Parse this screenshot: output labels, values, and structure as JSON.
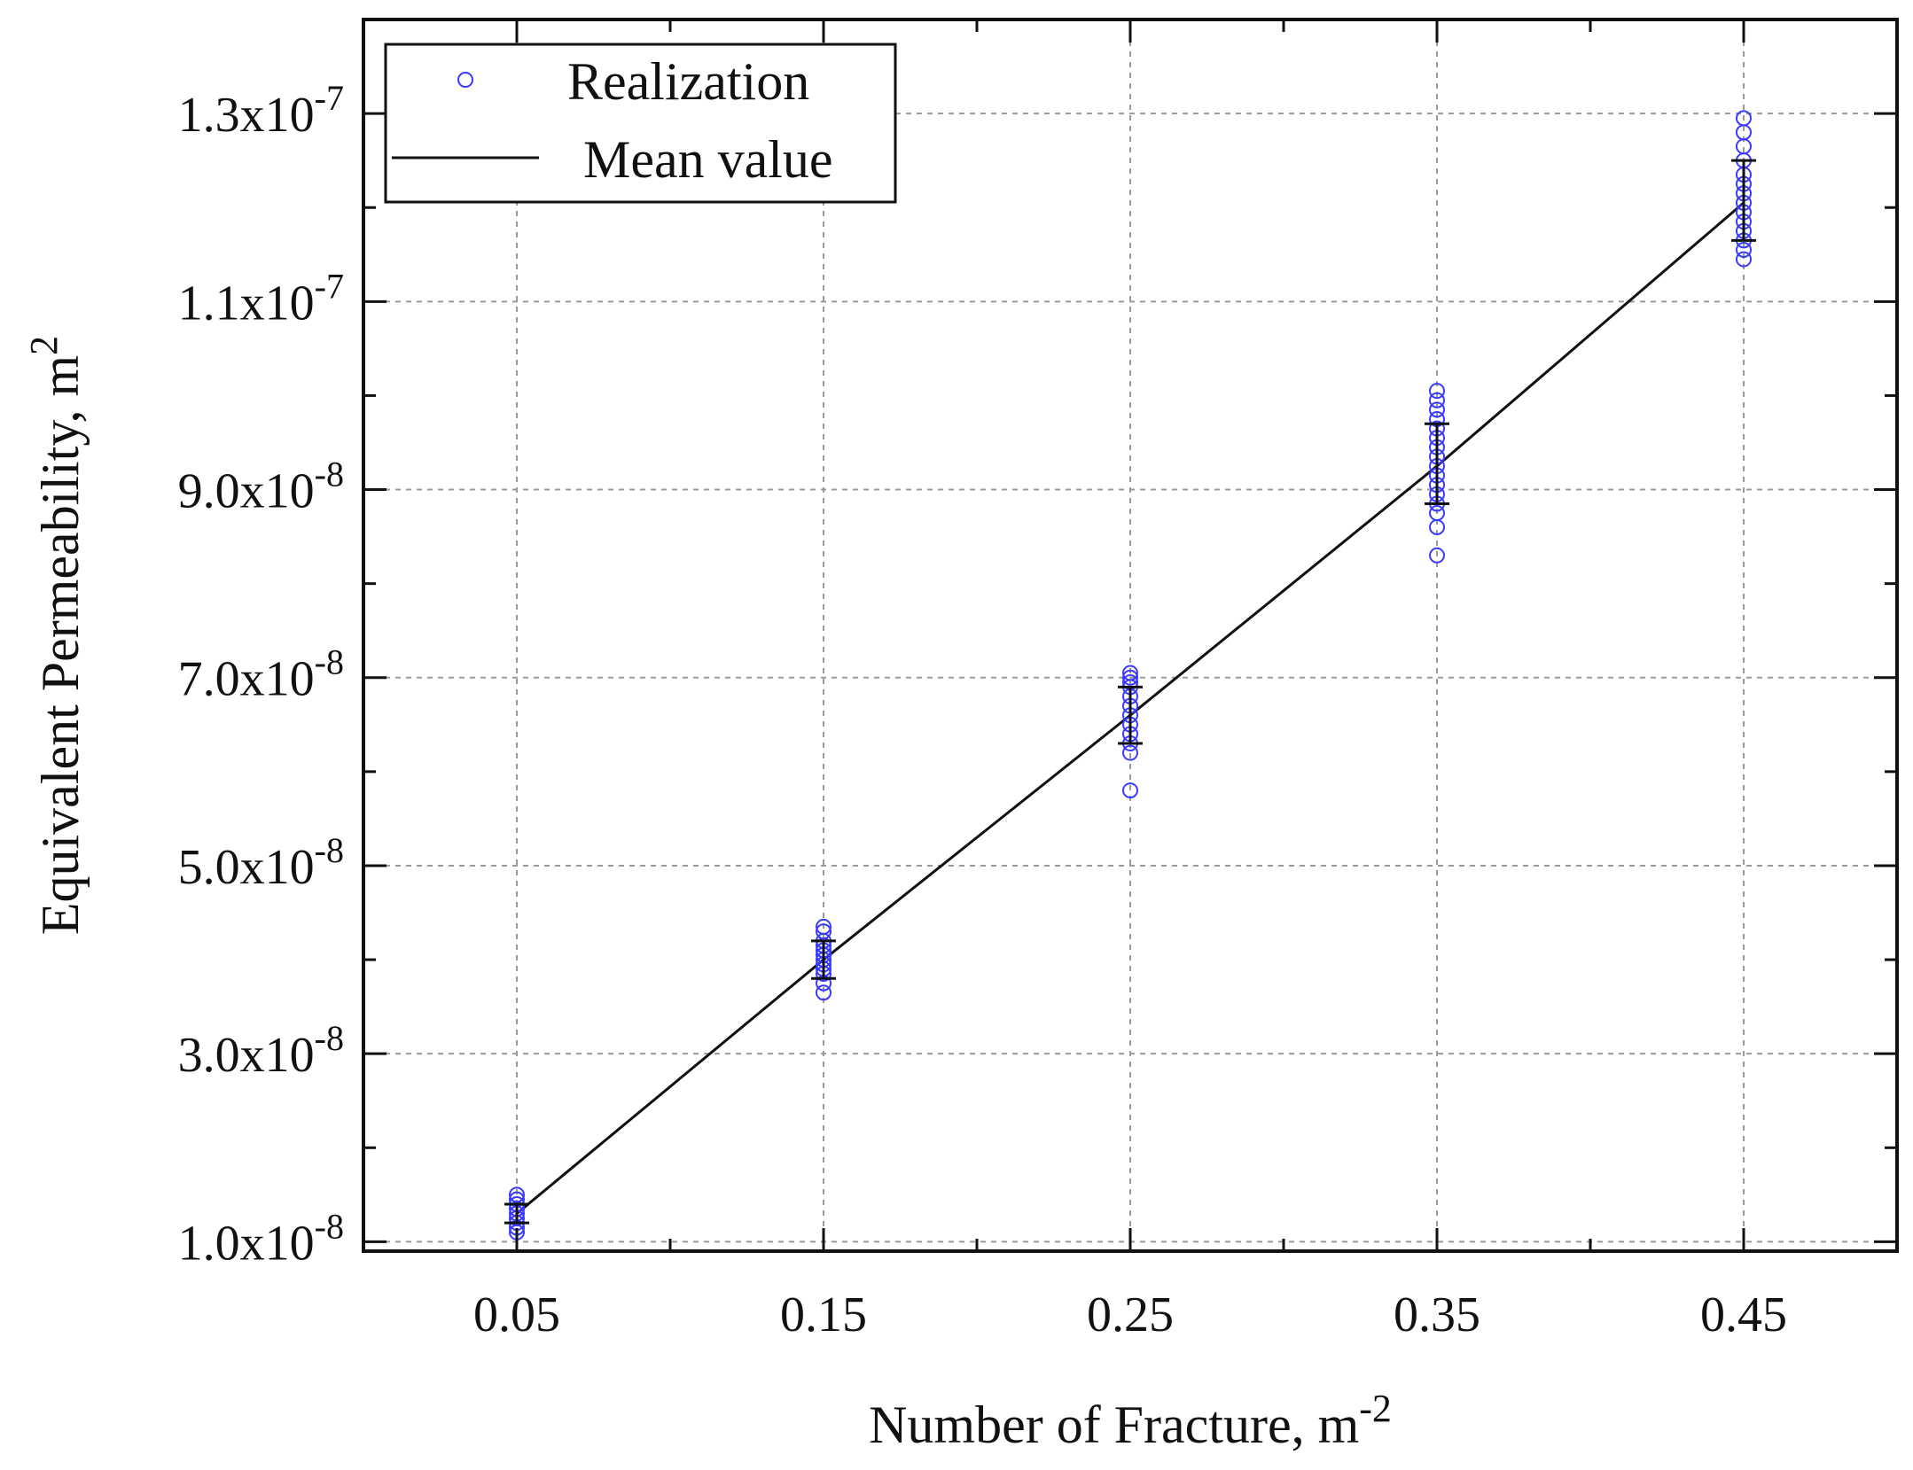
{
  "chart_data": {
    "type": "scatter",
    "title": "",
    "xlabel": "Number of Fracture, m",
    "xlabel_sup": "-2",
    "ylabel": "Equivalent Permeability, m",
    "ylabel_sup": "2",
    "xlim": [
      0.0,
      0.5
    ],
    "ylim": [
      9e-09,
      1.4e-07
    ],
    "grid": true,
    "legend_position": "top-left",
    "x_ticks": [
      {
        "value": 0.05,
        "label": "0.05"
      },
      {
        "value": 0.15,
        "label": "0.15"
      },
      {
        "value": 0.25,
        "label": "0.25"
      },
      {
        "value": 0.35,
        "label": "0.35"
      },
      {
        "value": 0.45,
        "label": "0.45"
      }
    ],
    "y_ticks": [
      {
        "value": 1e-08,
        "mantissa": "1.0x10",
        "exponent": "-8"
      },
      {
        "value": 3e-08,
        "mantissa": "3.0x10",
        "exponent": "-8"
      },
      {
        "value": 5e-08,
        "mantissa": "5.0x10",
        "exponent": "-8"
      },
      {
        "value": 7e-08,
        "mantissa": "7.0x10",
        "exponent": "-8"
      },
      {
        "value": 9e-08,
        "mantissa": "9.0x10",
        "exponent": "-8"
      },
      {
        "value": 1.1e-07,
        "mantissa": "1.1x10",
        "exponent": "-7"
      },
      {
        "value": 1.3e-07,
        "mantissa": "1.3x10",
        "exponent": "-7"
      }
    ],
    "legend": [
      {
        "name": "Realization",
        "marker": "circle"
      },
      {
        "name": "Mean value",
        "marker": "line"
      }
    ],
    "realizations": [
      {
        "x": 0.05,
        "y": [
          1.1e-08,
          1.15e-08,
          1.2e-08,
          1.25e-08,
          1.3e-08,
          1.35e-08,
          1.4e-08,
          1.45e-08,
          1.5e-08
        ]
      },
      {
        "x": 0.15,
        "y": [
          3.65e-08,
          3.75e-08,
          3.85e-08,
          3.9e-08,
          3.95e-08,
          4e-08,
          4.05e-08,
          4.1e-08,
          4.15e-08,
          4.2e-08,
          4.3e-08,
          4.35e-08
        ]
      },
      {
        "x": 0.25,
        "y": [
          5.8e-08,
          6.2e-08,
          6.3e-08,
          6.4e-08,
          6.5e-08,
          6.6e-08,
          6.7e-08,
          6.8e-08,
          6.9e-08,
          6.95e-08,
          7e-08,
          7.05e-08
        ]
      },
      {
        "x": 0.35,
        "y": [
          8.3e-08,
          8.6e-08,
          8.75e-08,
          8.85e-08,
          8.95e-08,
          9.05e-08,
          9.15e-08,
          9.25e-08,
          9.35e-08,
          9.45e-08,
          9.55e-08,
          9.65e-08,
          9.75e-08,
          9.85e-08,
          9.95e-08,
          1.005e-07
        ]
      },
      {
        "x": 0.45,
        "y": [
          1.145e-07,
          1.155e-07,
          1.165e-07,
          1.175e-07,
          1.185e-07,
          1.195e-07,
          1.205e-07,
          1.215e-07,
          1.225e-07,
          1.235e-07,
          1.25e-07,
          1.265e-07,
          1.28e-07,
          1.295e-07
        ]
      }
    ],
    "mean_values": {
      "x": [
        0.05,
        0.15,
        0.25,
        0.35,
        0.45
      ],
      "y": [
        1.3e-08,
        4e-08,
        6.6e-08,
        9.25e-08,
        1.205e-07
      ],
      "error_low": [
        1.2e-08,
        3.8e-08,
        6.3e-08,
        8.85e-08,
        1.165e-07
      ],
      "error_high": [
        1.4e-08,
        4.2e-08,
        6.9e-08,
        9.7e-08,
        1.25e-07
      ]
    }
  }
}
